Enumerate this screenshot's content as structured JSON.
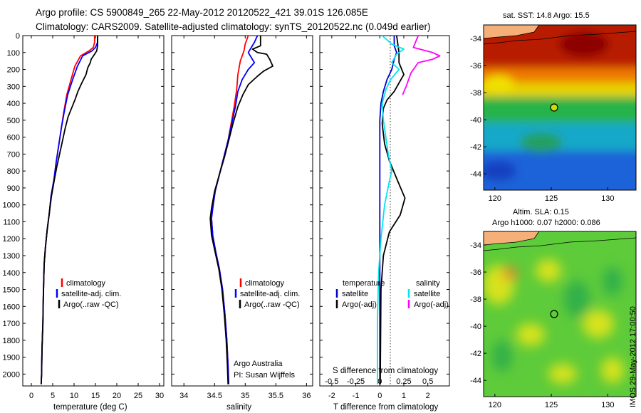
{
  "header": {
    "line1": "Argo profile: CS 5900849_265 22-May-2012 20120522_421 39.01S 126.085E",
    "line2": "Climatology: CARS2009. Satellite-adjusted climatology: synTS_20120522.nc (0.049d earlier)"
  },
  "colors": {
    "climatology": "#ff0000",
    "satellite": "#0000ff",
    "argo": "#000000",
    "t_satellite": "#0000cc",
    "s_satellite": "#00e5ee",
    "s_argo": "#ff00ff"
  },
  "y_axis": {
    "ticks": [
      "0",
      "100",
      "200",
      "300",
      "400",
      "500",
      "600",
      "700",
      "800",
      "900",
      "1000",
      "1100",
      "1200",
      "1300",
      "1400",
      "1500",
      "1600",
      "1700",
      "1800",
      "1900",
      "2000"
    ]
  },
  "chart_data": [
    {
      "type": "line",
      "xlabel": "temperature (deg C)",
      "xlim": [
        -2,
        31
      ],
      "xticks": [
        "0",
        "5",
        "10",
        "15",
        "20",
        "25",
        "30"
      ],
      "ylim": [
        2070,
        0
      ],
      "legend": [
        "climatology",
        "satellite-adj. clim.",
        "Argo(..raw -QC)"
      ],
      "series": [
        {
          "name": "climatology",
          "color": "#ff0000",
          "points": [
            [
              14.8,
              0
            ],
            [
              14.8,
              40
            ],
            [
              14.5,
              70
            ],
            [
              13.5,
              90
            ],
            [
              11.5,
              120
            ],
            [
              10.2,
              180
            ],
            [
              9.4,
              250
            ],
            [
              8.3,
              350
            ],
            [
              7.6,
              450
            ],
            [
              7.0,
              550
            ],
            [
              6.4,
              650
            ],
            [
              5.8,
              750
            ],
            [
              5.3,
              850
            ],
            [
              4.6,
              950
            ],
            [
              4.2,
              1050
            ],
            [
              3.7,
              1150
            ],
            [
              3.3,
              1250
            ],
            [
              3.0,
              1350
            ],
            [
              2.9,
              1450
            ],
            [
              2.8,
              1550
            ],
            [
              2.7,
              1700
            ],
            [
              2.5,
              1850
            ],
            [
              2.4,
              2000
            ],
            [
              2.3,
              2060
            ]
          ]
        },
        {
          "name": "satellite-adj. clim.",
          "color": "#0000ff",
          "points": [
            [
              15.5,
              0
            ],
            [
              15.5,
              40
            ],
            [
              15.0,
              70
            ],
            [
              14.2,
              90
            ],
            [
              12.0,
              120
            ],
            [
              10.8,
              180
            ],
            [
              9.8,
              250
            ],
            [
              8.5,
              350
            ],
            [
              7.7,
              450
            ],
            [
              7.0,
              550
            ],
            [
              6.4,
              650
            ],
            [
              5.8,
              750
            ],
            [
              5.3,
              850
            ],
            [
              4.6,
              950
            ],
            [
              4.2,
              1050
            ],
            [
              3.7,
              1150
            ],
            [
              3.3,
              1250
            ],
            [
              3.0,
              1350
            ],
            [
              2.9,
              1450
            ],
            [
              2.8,
              1550
            ],
            [
              2.7,
              1700
            ],
            [
              2.5,
              1850
            ],
            [
              2.4,
              2000
            ],
            [
              2.3,
              2060
            ]
          ]
        },
        {
          "name": "Argo(..raw -QC)",
          "color": "#000000",
          "points": [
            [
              15.5,
              0
            ],
            [
              15.5,
              60
            ],
            [
              15.3,
              90
            ],
            [
              14.8,
              110
            ],
            [
              14.0,
              140
            ],
            [
              13.8,
              160
            ],
            [
              13.2,
              190
            ],
            [
              12.8,
              230
            ],
            [
              11.8,
              280
            ],
            [
              10.9,
              330
            ],
            [
              10.2,
              380
            ],
            [
              9.4,
              430
            ],
            [
              8.6,
              480
            ],
            [
              7.9,
              550
            ],
            [
              7.3,
              620
            ],
            [
              6.7,
              690
            ],
            [
              6.0,
              770
            ],
            [
              5.4,
              850
            ],
            [
              4.7,
              950
            ],
            [
              4.2,
              1050
            ],
            [
              3.7,
              1150
            ],
            [
              3.3,
              1250
            ],
            [
              3.0,
              1350
            ],
            [
              2.9,
              1450
            ],
            [
              2.8,
              1550
            ],
            [
              2.7,
              1700
            ],
            [
              2.5,
              1850
            ],
            [
              2.4,
              2000
            ],
            [
              2.3,
              2060
            ]
          ]
        }
      ]
    },
    {
      "type": "line",
      "xlabel": "salinity",
      "xlim": [
        33.8,
        36.1
      ],
      "xticks": [
        "34",
        "34.5",
        "35",
        "35.5",
        "36"
      ],
      "ylim": [
        2070,
        0
      ],
      "legend": [
        "climatology",
        "satellite-adj. clim.",
        "Argo(..raw -QC)"
      ],
      "annotation": [
        "Argo Australia",
        "PI: Susan Wijffels"
      ],
      "series": [
        {
          "name": "climatology",
          "color": "#ff0000",
          "points": [
            [
              35.05,
              0
            ],
            [
              35.0,
              50
            ],
            [
              34.98,
              90
            ],
            [
              34.92,
              150
            ],
            [
              34.88,
              230
            ],
            [
              34.86,
              320
            ],
            [
              34.82,
              420
            ],
            [
              34.77,
              520
            ],
            [
              34.72,
              620
            ],
            [
              34.65,
              720
            ],
            [
              34.58,
              820
            ],
            [
              34.51,
              920
            ],
            [
              34.47,
              1020
            ],
            [
              34.45,
              1080
            ],
            [
              34.47,
              1180
            ],
            [
              34.52,
              1280
            ],
            [
              34.58,
              1380
            ],
            [
              34.63,
              1500
            ],
            [
              34.67,
              1650
            ],
            [
              34.7,
              1800
            ],
            [
              34.72,
              1950
            ],
            [
              34.73,
              2060
            ]
          ]
        },
        {
          "name": "satellite-adj. clim.",
          "color": "#0000ff",
          "points": [
            [
              35.2,
              0
            ],
            [
              35.15,
              40
            ],
            [
              35.1,
              70
            ],
            [
              35.05,
              100
            ],
            [
              35.1,
              130
            ],
            [
              35.15,
              160
            ],
            [
              35.05,
              200
            ],
            [
              34.95,
              260
            ],
            [
              34.88,
              330
            ],
            [
              34.84,
              420
            ],
            [
              34.78,
              520
            ],
            [
              34.72,
              620
            ],
            [
              34.65,
              720
            ],
            [
              34.58,
              820
            ],
            [
              34.51,
              920
            ],
            [
              34.47,
              1020
            ],
            [
              34.45,
              1080
            ],
            [
              34.47,
              1180
            ],
            [
              34.52,
              1280
            ],
            [
              34.58,
              1380
            ],
            [
              34.63,
              1500
            ],
            [
              34.67,
              1650
            ],
            [
              34.7,
              1800
            ],
            [
              34.72,
              1950
            ],
            [
              34.73,
              2060
            ]
          ]
        },
        {
          "name": "Argo(..raw -QC)",
          "color": "#000000",
          "points": [
            [
              35.25,
              0
            ],
            [
              35.25,
              60
            ],
            [
              35.12,
              80
            ],
            [
              35.2,
              100
            ],
            [
              35.35,
              110
            ],
            [
              35.4,
              140
            ],
            [
              35.45,
              180
            ],
            [
              35.3,
              210
            ],
            [
              35.2,
              240
            ],
            [
              35.05,
              290
            ],
            [
              34.96,
              350
            ],
            [
              34.88,
              420
            ],
            [
              34.8,
              520
            ],
            [
              34.73,
              620
            ],
            [
              34.66,
              720
            ],
            [
              34.58,
              820
            ],
            [
              34.5,
              920
            ],
            [
              34.45,
              1020
            ],
            [
              34.43,
              1080
            ],
            [
              34.45,
              1180
            ],
            [
              34.51,
              1280
            ],
            [
              34.57,
              1380
            ],
            [
              34.62,
              1500
            ],
            [
              34.66,
              1650
            ],
            [
              34.69,
              1800
            ],
            [
              34.71,
              1950
            ],
            [
              34.72,
              2060
            ]
          ]
        }
      ]
    },
    {
      "type": "line",
      "xlabel": "T difference from climatology",
      "xlabel2": "S difference from climatology",
      "xlim": [
        -2.5,
        2.9
      ],
      "xticks": [
        "-2",
        "-1",
        "0",
        "1",
        "2"
      ],
      "xticks2": [
        "-0.5",
        "-0.25",
        "0",
        "0.25",
        "0.5"
      ],
      "ylim": [
        2070,
        0
      ],
      "legend_t": {
        "title": "temperature",
        "items": [
          "satellite",
          "Argo(-adj)"
        ]
      },
      "legend_s": {
        "title": "salinity",
        "items": [
          "satellite",
          "Argo(-adj)"
        ]
      },
      "series": [
        {
          "name": "T satellite",
          "color": "#0000cc",
          "points": [
            [
              0.6,
              0
            ],
            [
              0.6,
              60
            ],
            [
              0.7,
              100
            ],
            [
              0.6,
              140
            ],
            [
              0.5,
              200
            ],
            [
              0.3,
              260
            ],
            [
              0.15,
              330
            ],
            [
              0.05,
              400
            ],
            [
              0,
              500
            ],
            [
              0,
              700
            ],
            [
              0,
              2060
            ]
          ]
        },
        {
          "name": "T Argo(-adj)",
          "color": "#000000",
          "points": [
            [
              0.7,
              0
            ],
            [
              0.8,
              100
            ],
            [
              0.8,
              160
            ],
            [
              1.0,
              230
            ],
            [
              0.8,
              280
            ],
            [
              0.6,
              330
            ],
            [
              0.3,
              380
            ],
            [
              0.15,
              430
            ],
            [
              0.1,
              520
            ],
            [
              0.2,
              640
            ],
            [
              0.4,
              740
            ],
            [
              0.75,
              860
            ],
            [
              1.05,
              960
            ],
            [
              0.85,
              1060
            ],
            [
              0.4,
              1160
            ],
            [
              0.15,
              1300
            ],
            [
              0.05,
              1500
            ],
            [
              0.02,
              2060
            ]
          ]
        },
        {
          "name": "S satellite",
          "color": "#00e5ee",
          "points": [
            [
              0.1,
              0
            ],
            [
              0.5,
              50
            ],
            [
              1.0,
              80
            ],
            [
              0.7,
              110
            ],
            [
              0.5,
              160
            ],
            [
              0.8,
              200
            ],
            [
              0.45,
              260
            ],
            [
              0.25,
              320
            ],
            [
              0.1,
              400
            ],
            [
              0.15,
              500
            ],
            [
              0.25,
              600
            ],
            [
              0.35,
              700
            ],
            [
              0.5,
              800
            ],
            [
              0.4,
              860
            ],
            [
              0.2,
              1000
            ],
            [
              0.05,
              1200
            ],
            [
              -0.05,
              1400
            ],
            [
              -0.1,
              1700
            ],
            [
              -0.1,
              2060
            ]
          ]
        },
        {
          "name": "S Argo(-adj)",
          "color": "#ff00ff",
          "points": [
            [
              1.6,
              0
            ],
            [
              1.4,
              70
            ],
            [
              2.2,
              100
            ],
            [
              2.5,
              120
            ],
            [
              2.2,
              140
            ],
            [
              1.6,
              160
            ],
            [
              1.3,
              220
            ],
            [
              1.1,
              300
            ],
            [
              0.95,
              350
            ]
          ]
        }
      ]
    },
    {
      "type": "heatmap",
      "title": "sat. SST: 14.8 Argo: 15.5",
      "xticks": [
        "120",
        "125",
        "130"
      ],
      "yticks": [
        "-34",
        "-36",
        "-38",
        "-40",
        "-42",
        "-44"
      ],
      "xlim": [
        119,
        132.5
      ],
      "ylim": [
        -45.2,
        -33
      ]
    },
    {
      "type": "heatmap",
      "title": "Altim. SLA: 0.15",
      "title2": "Argo h1000: 0.07 h2000: 0.086",
      "xticks": [
        "120",
        "125",
        "130"
      ],
      "yticks": [
        "-34",
        "-36",
        "-38",
        "-40",
        "-42",
        "-44"
      ],
      "xlim": [
        119,
        132.5
      ],
      "ylim": [
        -45.2,
        -33
      ]
    }
  ],
  "stamp": "IMOS 29-May-2012 17:00:50"
}
